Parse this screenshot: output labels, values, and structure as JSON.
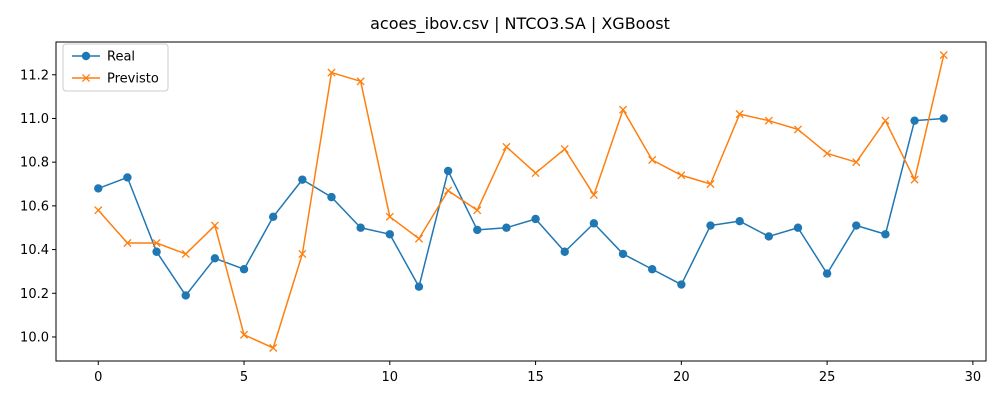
{
  "chart_data": {
    "type": "line",
    "title": "acoes_ibov.csv | NTCO3.SA | XGBoost",
    "xlabel": "",
    "ylabel": "",
    "xlim": [
      -1.45,
      30.45
    ],
    "ylim": [
      9.89,
      11.35
    ],
    "x_ticks": [
      0,
      5,
      10,
      15,
      20,
      25,
      30
    ],
    "y_ticks": [
      10.0,
      10.2,
      10.4,
      10.6,
      10.8,
      11.0,
      11.2
    ],
    "x_tick_labels": [
      "0",
      "5",
      "10",
      "15",
      "20",
      "25",
      "30"
    ],
    "y_tick_labels": [
      "10.0",
      "10.2",
      "10.4",
      "10.6",
      "10.8",
      "11.0",
      "11.2"
    ],
    "grid": false,
    "legend_position": "top-left",
    "x": [
      0,
      1,
      2,
      3,
      4,
      5,
      6,
      7,
      8,
      9,
      10,
      11,
      12,
      13,
      14,
      15,
      16,
      17,
      18,
      19,
      20,
      21,
      22,
      23,
      24,
      25,
      26,
      27,
      28,
      29
    ],
    "series": [
      {
        "name": "Real",
        "color": "#1f77b4",
        "marker": "circle",
        "values": [
          10.68,
          10.73,
          10.39,
          10.19,
          10.36,
          10.31,
          10.55,
          10.72,
          10.64,
          10.5,
          10.47,
          10.23,
          10.76,
          10.49,
          10.5,
          10.54,
          10.39,
          10.52,
          10.38,
          10.31,
          10.24,
          10.51,
          10.53,
          10.46,
          10.5,
          10.29,
          10.51,
          10.47,
          10.99,
          11.0
        ]
      },
      {
        "name": "Previsto",
        "color": "#ff7f0e",
        "marker": "x",
        "values": [
          10.58,
          10.43,
          10.43,
          10.38,
          10.51,
          10.01,
          9.95,
          10.38,
          11.21,
          11.17,
          10.55,
          10.45,
          10.67,
          10.58,
          10.87,
          10.75,
          10.86,
          10.65,
          11.04,
          10.81,
          10.74,
          10.7,
          11.02,
          10.99,
          10.95,
          10.84,
          10.8,
          10.99,
          10.72,
          11.29
        ]
      }
    ]
  }
}
